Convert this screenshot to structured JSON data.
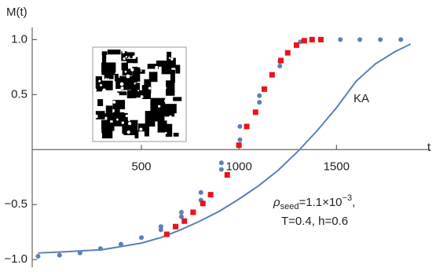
{
  "chart_data": {
    "type": "scatter",
    "y_label": "M(t)",
    "x_label": "t",
    "xlim": [
      -60,
      1950
    ],
    "ylim": [
      -1.07,
      1.11
    ],
    "xticks": [
      500,
      1000,
      1500
    ],
    "yticks": [
      {
        "value": -1.0,
        "label": "−1.0"
      },
      {
        "value": -0.5,
        "label": "−0.5"
      },
      0.5,
      {
        "value": 1.0,
        "label": "1.0"
      }
    ],
    "series": [
      {
        "color": "#5b7fb8",
        "marker": "circle",
        "x": [
          -30,
          80,
          185,
          290,
          395,
          500,
          600,
          600,
          705,
          705,
          805,
          805,
          910,
          910,
          1005,
          1005,
          1105,
          1105,
          1210,
          1210,
          1315,
          1420,
          1520,
          1620,
          1725,
          1830
        ],
        "values": [
          -0.97,
          -0.96,
          -0.94,
          -0.9,
          -0.86,
          -0.8,
          -0.73,
          -0.7,
          -0.61,
          -0.57,
          -0.46,
          -0.39,
          -0.18,
          -0.12,
          0.09,
          0.21,
          0.43,
          0.49,
          0.76,
          0.8,
          0.98,
          1.0,
          1.0,
          1.0,
          1.0,
          1.0
        ]
      },
      {
        "color": "#e8141b",
        "marker": "square",
        "x": [
          630,
          675,
          720,
          765,
          815,
          855,
          940,
          1000,
          1040,
          1085,
          1130,
          1170,
          1215,
          1250,
          1295,
          1335,
          1375,
          1420
        ],
        "values": [
          -0.77,
          -0.7,
          -0.65,
          -0.57,
          -0.49,
          -0.41,
          -0.23,
          0.04,
          0.21,
          0.34,
          0.55,
          0.68,
          0.81,
          0.88,
          0.95,
          0.99,
          1.0,
          1.0
        ]
      },
      {
        "name": "KA",
        "color": "#5b7fb8",
        "marker": "line",
        "x": [
          -30,
          100,
          200,
          300,
          400,
          500,
          600,
          700,
          800,
          900,
          1000,
          1100,
          1200,
          1300,
          1400,
          1500,
          1600,
          1700,
          1800,
          1880
        ],
        "values": [
          -0.94,
          -0.93,
          -0.92,
          -0.91,
          -0.88,
          -0.85,
          -0.8,
          -0.73,
          -0.65,
          -0.56,
          -0.45,
          -0.33,
          -0.19,
          -0.02,
          0.17,
          0.38,
          0.62,
          0.78,
          0.89,
          0.96
        ]
      }
    ],
    "annotation": {
      "symbol": "ρ",
      "subscript": "seed",
      "text": "=1.1×10",
      "superscript": "−3",
      "tail": ",",
      "line2": "T=0.4, h=0.6"
    }
  }
}
